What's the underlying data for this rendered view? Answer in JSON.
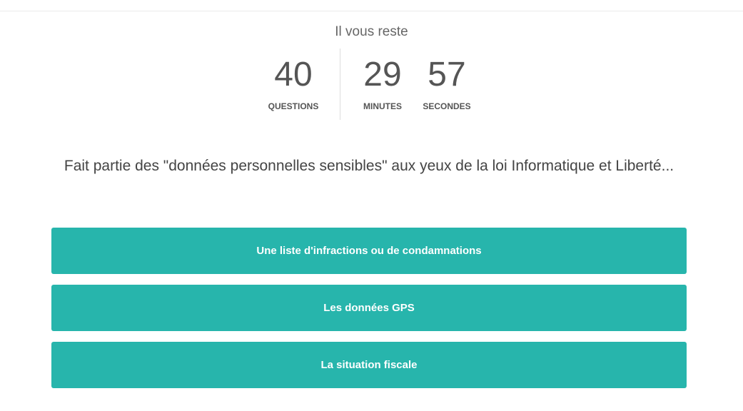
{
  "timer": {
    "heading": "Il vous reste",
    "questions": {
      "value": "40",
      "label": "QUESTIONS"
    },
    "minutes": {
      "value": "29",
      "label": "MINUTES"
    },
    "seconds": {
      "value": "57",
      "label": "SECONDES"
    }
  },
  "question": "Fait partie des \"données personnelles sensibles\" aux yeux de la loi Informatique et Liberté...",
  "answers": [
    "Une liste d'infractions ou de condamnations",
    "Les données GPS",
    "La situation fiscale"
  ],
  "colors": {
    "accent": "#27b5ac"
  }
}
